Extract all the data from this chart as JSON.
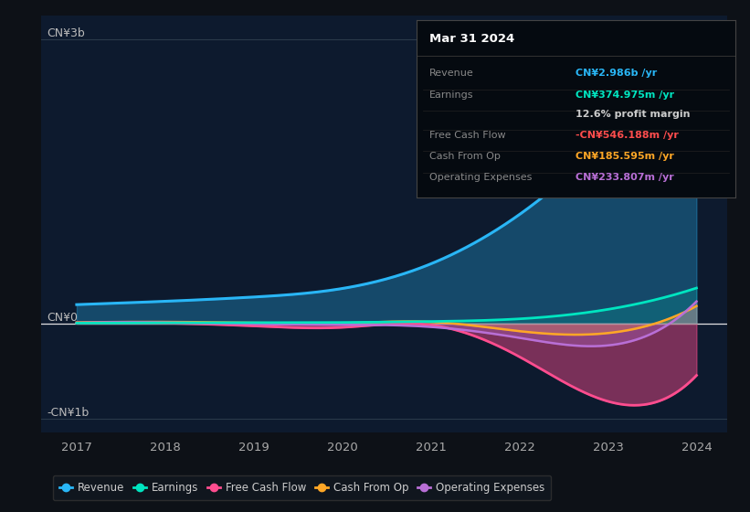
{
  "background_color": "#0d1117",
  "plot_bg_color": "#0d1a2e",
  "ylabel_top": "CN¥3b",
  "ylabel_zero": "CN¥0",
  "ylabel_neg": "-CN¥1b",
  "years": [
    2017,
    2018,
    2019,
    2020,
    2021,
    2022,
    2023,
    2024
  ],
  "revenue": [
    200,
    235,
    280,
    370,
    630,
    1150,
    1950,
    2986
  ],
  "earnings": [
    5,
    8,
    10,
    12,
    22,
    50,
    150,
    374.975
  ],
  "free_cash_flow": [
    8,
    5,
    -25,
    -40,
    -15,
    -350,
    -820,
    -546.188
  ],
  "cash_from_op": [
    12,
    18,
    8,
    4,
    18,
    -80,
    -100,
    185.595
  ],
  "operating_expenses": [
    8,
    12,
    -5,
    -12,
    -35,
    -150,
    -230,
    233.807
  ],
  "revenue_color": "#29b6f6",
  "earnings_color": "#00e5c0",
  "free_cash_flow_color": "#ff4d8f",
  "cash_from_op_color": "#ffa726",
  "operating_expenses_color": "#b96fd6",
  "info_box_title": "Mar 31 2024",
  "info_box_rows": [
    {
      "label": "Revenue",
      "value": "CN¥2.986b /yr",
      "value_color": "#29b6f6",
      "label_color": "#888888"
    },
    {
      "label": "Earnings",
      "value": "CN¥374.975m /yr",
      "value_color": "#00e5c0",
      "label_color": "#888888"
    },
    {
      "label": "",
      "value": "12.6% profit margin",
      "value_color": "#cccccc",
      "label_color": "#888888"
    },
    {
      "label": "Free Cash Flow",
      "value": "-CN¥546.188m /yr",
      "value_color": "#ff4d4d",
      "label_color": "#888888"
    },
    {
      "label": "Cash From Op",
      "value": "CN¥185.595m /yr",
      "value_color": "#ffa726",
      "label_color": "#888888"
    },
    {
      "label": "Operating Expenses",
      "value": "CN¥233.807m /yr",
      "value_color": "#b96fd6",
      "label_color": "#888888"
    }
  ],
  "legend_entries": [
    {
      "label": "Revenue",
      "color": "#29b6f6"
    },
    {
      "label": "Earnings",
      "color": "#00e5c0"
    },
    {
      "label": "Free Cash Flow",
      "color": "#ff4d8f"
    },
    {
      "label": "Cash From Op",
      "color": "#ffa726"
    },
    {
      "label": "Operating Expenses",
      "color": "#b96fd6"
    }
  ],
  "xlim": [
    2016.6,
    2024.35
  ],
  "ylim": [
    -1.15,
    3.25
  ],
  "yticks": [
    3.0,
    0.0,
    -1.0
  ],
  "xticks": [
    2017,
    2018,
    2019,
    2020,
    2021,
    2022,
    2023,
    2024
  ]
}
